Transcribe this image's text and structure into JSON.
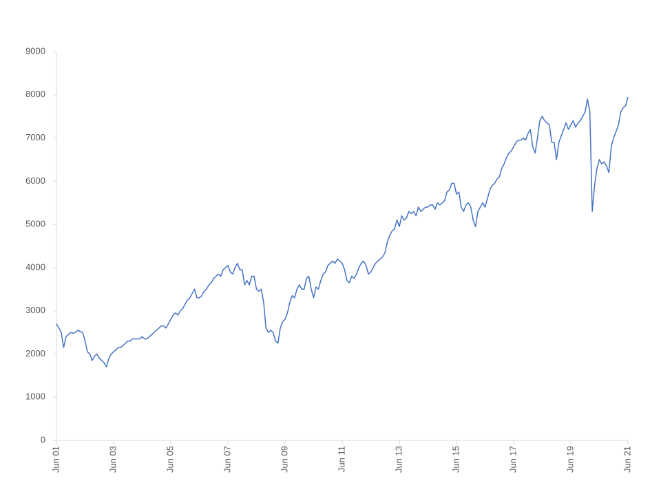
{
  "chart_data": {
    "type": "line",
    "x": [
      "Jun 01",
      null,
      null,
      null,
      null,
      null,
      null,
      null,
      null,
      null,
      null,
      null,
      null,
      null,
      null,
      null,
      null,
      null,
      null,
      null,
      null,
      null,
      null,
      null,
      "Jun 03",
      null,
      null,
      null,
      null,
      null,
      null,
      null,
      null,
      null,
      null,
      null,
      null,
      null,
      null,
      null,
      null,
      null,
      null,
      null,
      null,
      null,
      null,
      null,
      "Jun 05",
      null,
      null,
      null,
      null,
      null,
      null,
      null,
      null,
      null,
      null,
      null,
      null,
      null,
      null,
      null,
      null,
      null,
      null,
      null,
      null,
      null,
      null,
      null,
      "Jun 07",
      null,
      null,
      null,
      null,
      null,
      null,
      null,
      null,
      null,
      null,
      null,
      null,
      null,
      null,
      null,
      null,
      null,
      null,
      null,
      null,
      null,
      null,
      null,
      "Jun 09",
      null,
      null,
      null,
      null,
      null,
      null,
      null,
      null,
      null,
      null,
      null,
      null,
      null,
      null,
      null,
      null,
      null,
      null,
      null,
      null,
      null,
      null,
      null,
      "Jun 11",
      null,
      null,
      null,
      null,
      null,
      null,
      null,
      null,
      null,
      null,
      null,
      null,
      null,
      null,
      null,
      null,
      null,
      null,
      null,
      null,
      null,
      null,
      null,
      "Jun 13",
      null,
      null,
      null,
      null,
      null,
      null,
      null,
      null,
      null,
      null,
      null,
      null,
      null,
      null,
      null,
      null,
      null,
      null,
      null,
      null,
      null,
      null,
      null,
      "Jun 15",
      null,
      null,
      null,
      null,
      null,
      null,
      null,
      null,
      null,
      null,
      null,
      null,
      null,
      null,
      null,
      null,
      null,
      null,
      null,
      null,
      null,
      null,
      null,
      "Jun 17",
      null,
      null,
      null,
      null,
      null,
      null,
      null,
      null,
      null,
      null,
      null,
      null,
      null,
      null,
      null,
      null,
      null,
      null,
      null,
      null,
      null,
      null,
      null,
      "Jun 19",
      null,
      null,
      null,
      null,
      null,
      null,
      null,
      null,
      null,
      null,
      null,
      null,
      null,
      null,
      null,
      null,
      null,
      null,
      null,
      null,
      null,
      null,
      null,
      "Jun 21"
    ],
    "series": [
      {
        "color": "#4472c4",
        "values": [
          2700,
          2600,
          2500,
          2150,
          2400,
          2450,
          2500,
          2480,
          2500,
          2550,
          2520,
          2500,
          2300,
          2050,
          2000,
          1850,
          1950,
          2000,
          1900,
          1850,
          1800,
          1700,
          1900,
          2000,
          2050,
          2100,
          2150,
          2150,
          2200,
          2250,
          2300,
          2300,
          2350,
          2350,
          2350,
          2350,
          2400,
          2350,
          2350,
          2400,
          2450,
          2500,
          2550,
          2600,
          2650,
          2650,
          2600,
          2700,
          2800,
          2900,
          2950,
          2900,
          3000,
          3050,
          3150,
          3250,
          3300,
          3400,
          3500,
          3300,
          3300,
          3350,
          3450,
          3500,
          3600,
          3650,
          3750,
          3800,
          3850,
          3800,
          3950,
          4000,
          4050,
          3900,
          3850,
          4000,
          4100,
          3950,
          3950,
          3600,
          3700,
          3600,
          3800,
          3800,
          3500,
          3450,
          3500,
          3200,
          2600,
          2500,
          2550,
          2500,
          2300,
          2250,
          2600,
          2750,
          2800,
          2950,
          3200,
          3350,
          3300,
          3500,
          3600,
          3500,
          3500,
          3750,
          3800,
          3500,
          3300,
          3550,
          3500,
          3700,
          3850,
          3900,
          4050,
          4100,
          4150,
          4100,
          4200,
          4150,
          4100,
          3950,
          3700,
          3650,
          3800,
          3750,
          3850,
          4000,
          4100,
          4150,
          4050,
          3850,
          3900,
          4000,
          4100,
          4150,
          4200,
          4250,
          4350,
          4600,
          4750,
          4850,
          4900,
          5100,
          4950,
          5200,
          5100,
          5150,
          5300,
          5250,
          5300,
          5200,
          5400,
          5300,
          5350,
          5400,
          5400,
          5450,
          5450,
          5350,
          5500,
          5450,
          5500,
          5550,
          5750,
          5800,
          5950,
          5950,
          5700,
          5750,
          5400,
          5300,
          5450,
          5500,
          5400,
          5100,
          4950,
          5300,
          5400,
          5500,
          5400,
          5600,
          5800,
          5900,
          5950,
          6050,
          6100,
          6300,
          6400,
          6550,
          6650,
          6700,
          6800,
          6900,
          6950,
          6950,
          7000,
          6950,
          7100,
          7200,
          6800,
          6650,
          7000,
          7400,
          7500,
          7400,
          7350,
          7300,
          6900,
          6900,
          6500,
          6900,
          7050,
          7200,
          7350,
          7200,
          7300,
          7400,
          7250,
          7350,
          7400,
          7500,
          7600,
          7900,
          7600,
          5300,
          5900,
          6300,
          6500,
          6400,
          6450,
          6350,
          6200,
          6800,
          7000,
          7150,
          7300,
          7600,
          7700,
          7750,
          7950
        ]
      }
    ],
    "ylim": [
      0,
      9000
    ],
    "yticks": [
      0,
      1000,
      2000,
      3000,
      4000,
      5000,
      6000,
      7000,
      8000,
      9000
    ],
    "grid": false
  }
}
